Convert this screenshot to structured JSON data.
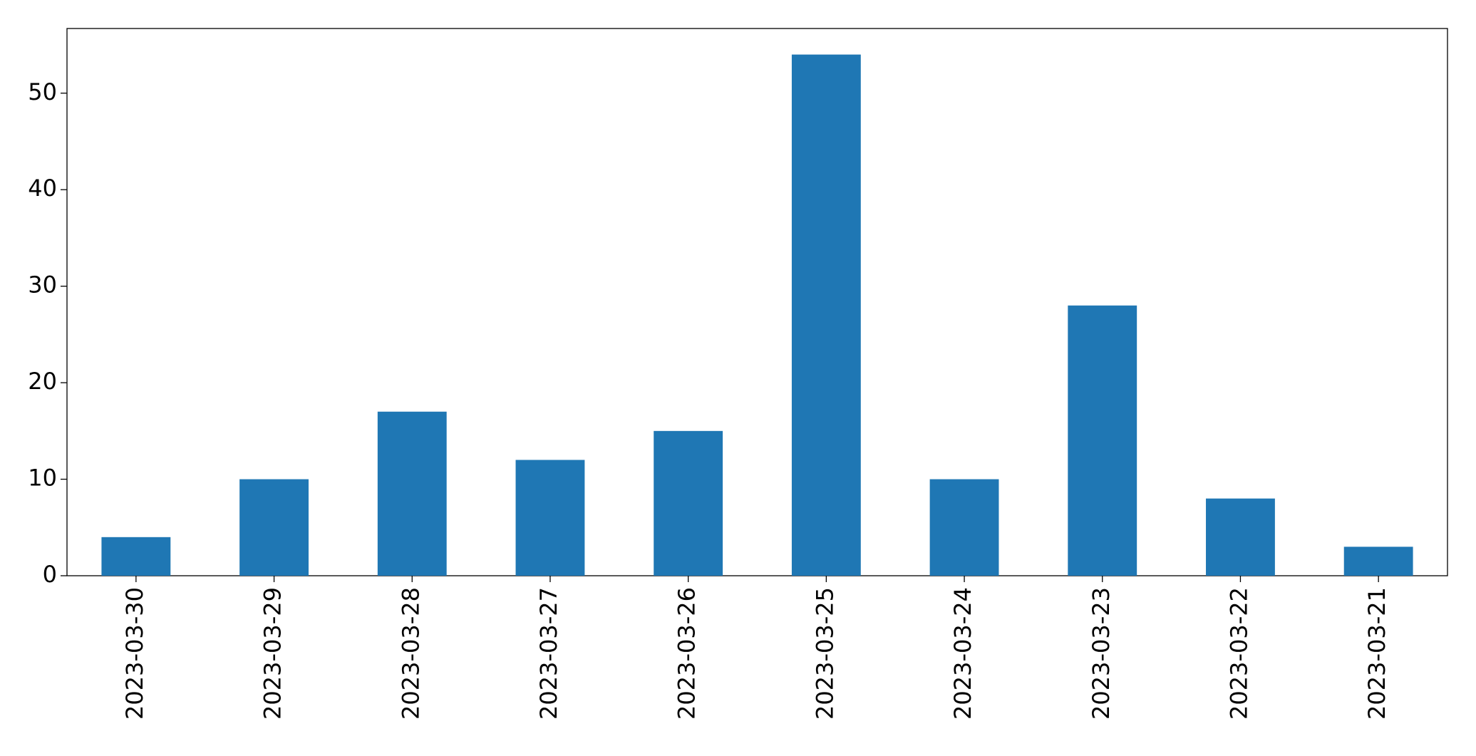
{
  "chart_data": {
    "type": "bar",
    "categories": [
      "2023-03-30",
      "2023-03-29",
      "2023-03-28",
      "2023-03-27",
      "2023-03-26",
      "2023-03-25",
      "2023-03-24",
      "2023-03-23",
      "2023-03-22",
      "2023-03-21"
    ],
    "values": [
      4,
      10,
      17,
      12,
      15,
      54,
      10,
      28,
      8,
      3
    ],
    "color": "#1f77b4",
    "ylim": [
      0,
      56.7
    ],
    "yticks": [
      0,
      10,
      20,
      30,
      40,
      50
    ],
    "grid": false
  }
}
